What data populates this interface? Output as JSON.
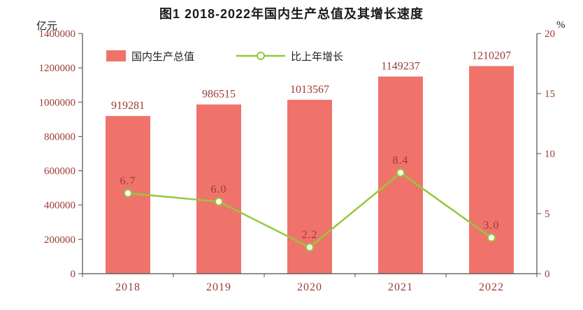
{
  "chart_data": {
    "type": "combo",
    "title": "图1  2018-2022年国内生产总值及其增长速度",
    "categories": [
      "2018",
      "2019",
      "2020",
      "2021",
      "2022"
    ],
    "series": [
      {
        "name": "国内生产总值",
        "type": "bar",
        "axis": "left",
        "values": [
          919281,
          986515,
          1013567,
          1149237,
          1210207
        ],
        "color": "#F0736B"
      },
      {
        "name": "比上年增长",
        "type": "line",
        "axis": "right",
        "values": [
          6.7,
          6.0,
          2.2,
          8.4,
          3.0
        ],
        "color": "#94C83D",
        "marker": "circle-open"
      }
    ],
    "left_axis": {
      "unit": "亿元",
      "min": 0,
      "max": 1400000,
      "step": 200000
    },
    "right_axis": {
      "unit": "%",
      "min": 0,
      "max": 20,
      "step": 5
    },
    "legend": [
      "国内生产总值",
      "比上年增长"
    ],
    "legend_position": "top-left-inside",
    "grid": false,
    "label_color": "#9a3b33",
    "axis_color": "#4d4d4d",
    "title_color": "#1a1a1a"
  }
}
